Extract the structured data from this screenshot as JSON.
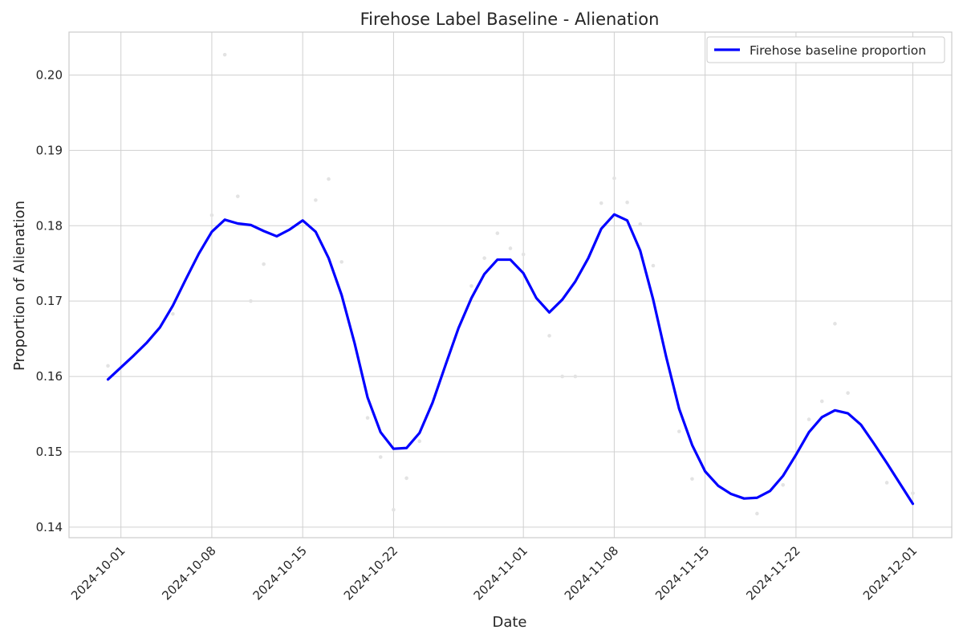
{
  "chart_data": {
    "type": "line",
    "title": "Firehose Label Baseline - Alienation",
    "xlabel": "Date",
    "ylabel": "Proportion of Alienation",
    "x_range": [
      "2024-09-27",
      "2024-12-04"
    ],
    "ylim": [
      0.1386,
      0.2057
    ],
    "x_ticks": [
      "2024-10-01",
      "2024-10-08",
      "2024-10-15",
      "2024-10-22",
      "2024-11-01",
      "2024-11-08",
      "2024-11-15",
      "2024-11-22",
      "2024-12-01"
    ],
    "y_ticks": [
      "0.14",
      "0.15",
      "0.16",
      "0.17",
      "0.18",
      "0.19",
      "0.20"
    ],
    "grid": true,
    "legend_position": "top-right",
    "series": [
      {
        "name": "Firehose baseline proportion",
        "color": "#0000ff",
        "x": [
          "2024-09-30",
          "2024-10-01",
          "2024-10-02",
          "2024-10-03",
          "2024-10-04",
          "2024-10-05",
          "2024-10-06",
          "2024-10-07",
          "2024-10-08",
          "2024-10-09",
          "2024-10-10",
          "2024-10-11",
          "2024-10-12",
          "2024-10-13",
          "2024-10-14",
          "2024-10-15",
          "2024-10-16",
          "2024-10-17",
          "2024-10-18",
          "2024-10-19",
          "2024-10-20",
          "2024-10-21",
          "2024-10-22",
          "2024-10-23",
          "2024-10-24",
          "2024-10-25",
          "2024-10-26",
          "2024-10-27",
          "2024-10-28",
          "2024-10-29",
          "2024-10-30",
          "2024-10-31",
          "2024-11-01",
          "2024-11-02",
          "2024-11-03",
          "2024-11-04",
          "2024-11-05",
          "2024-11-06",
          "2024-11-07",
          "2024-11-08",
          "2024-11-09",
          "2024-11-10",
          "2024-11-11",
          "2024-11-12",
          "2024-11-13",
          "2024-11-14",
          "2024-11-15",
          "2024-11-16",
          "2024-11-17",
          "2024-11-18",
          "2024-11-19",
          "2024-11-20",
          "2024-11-21",
          "2024-11-22",
          "2024-11-23",
          "2024-11-24",
          "2024-11-25",
          "2024-11-26",
          "2024-11-27",
          "2024-11-28",
          "2024-11-29",
          "2024-11-30",
          "2024-12-01"
        ],
        "values": [
          0.1596,
          0.1612,
          0.1628,
          0.1645,
          0.1665,
          0.1694,
          0.1729,
          0.1763,
          0.1792,
          0.1808,
          0.1803,
          0.1801,
          0.1793,
          0.1786,
          0.1795,
          0.1807,
          0.1792,
          0.1757,
          0.1708,
          0.1644,
          0.1572,
          0.1526,
          0.1504,
          0.1505,
          0.1525,
          0.1565,
          0.1615,
          0.1664,
          0.1704,
          0.1736,
          0.1755,
          0.1755,
          0.1737,
          0.1704,
          0.1685,
          0.1702,
          0.1726,
          0.1757,
          0.1796,
          0.1815,
          0.1807,
          0.1767,
          0.1702,
          0.1626,
          0.1557,
          0.1509,
          0.1474,
          0.1455,
          0.1444,
          0.1438,
          0.1439,
          0.1448,
          0.1468,
          0.1496,
          0.1526,
          0.1546,
          0.1555,
          0.1551,
          0.1536,
          0.1511,
          0.1485,
          0.1458,
          0.1431
        ]
      }
    ],
    "scatter_points": [
      {
        "x": "2024-09-30",
        "y": 0.1614
      },
      {
        "x": "2024-10-05",
        "y": 0.1683
      },
      {
        "x": "2024-10-08",
        "y": 0.1814
      },
      {
        "x": "2024-10-09",
        "y": 0.2027
      },
      {
        "x": "2024-10-10",
        "y": 0.1839
      },
      {
        "x": "2024-10-11",
        "y": 0.17
      },
      {
        "x": "2024-10-12",
        "y": 0.1749
      },
      {
        "x": "2024-10-16",
        "y": 0.1834
      },
      {
        "x": "2024-10-17",
        "y": 0.1862
      },
      {
        "x": "2024-10-18",
        "y": 0.1752
      },
      {
        "x": "2024-10-20",
        "y": 0.1545
      },
      {
        "x": "2024-10-21",
        "y": 0.1493
      },
      {
        "x": "2024-10-22",
        "y": 0.1423
      },
      {
        "x": "2024-10-23",
        "y": 0.1465
      },
      {
        "x": "2024-10-24",
        "y": 0.1514
      },
      {
        "x": "2024-10-28",
        "y": 0.172
      },
      {
        "x": "2024-10-29",
        "y": 0.1757
      },
      {
        "x": "2024-10-30",
        "y": 0.179
      },
      {
        "x": "2024-10-31",
        "y": 0.177
      },
      {
        "x": "2024-11-01",
        "y": 0.1762
      },
      {
        "x": "2024-11-03",
        "y": 0.1654
      },
      {
        "x": "2024-11-04",
        "y": 0.16
      },
      {
        "x": "2024-11-05",
        "y": 0.16
      },
      {
        "x": "2024-11-07",
        "y": 0.183
      },
      {
        "x": "2024-11-08",
        "y": 0.1863
      },
      {
        "x": "2024-11-09",
        "y": 0.1831
      },
      {
        "x": "2024-11-10",
        "y": 0.1802
      },
      {
        "x": "2024-11-11",
        "y": 0.1747
      },
      {
        "x": "2024-11-13",
        "y": 0.1527
      },
      {
        "x": "2024-11-14",
        "y": 0.1464
      },
      {
        "x": "2024-11-19",
        "y": 0.1418
      },
      {
        "x": "2024-11-21",
        "y": 0.1456
      },
      {
        "x": "2024-11-23",
        "y": 0.1543
      },
      {
        "x": "2024-11-24",
        "y": 0.1567
      },
      {
        "x": "2024-11-25",
        "y": 0.167
      },
      {
        "x": "2024-11-26",
        "y": 0.1578
      },
      {
        "x": "2024-11-29",
        "y": 0.1459
      },
      {
        "x": "2024-12-01",
        "y": 0.1445
      }
    ]
  }
}
